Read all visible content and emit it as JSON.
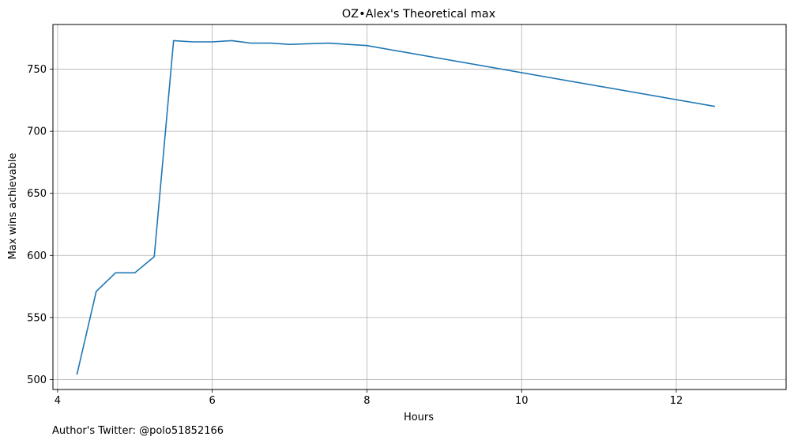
{
  "footnote": "Author's Twitter: @polo51852166",
  "chart_data": {
    "type": "line",
    "title": "OZ•Alex's Theoretical max",
    "xlabel": "Hours",
    "ylabel": "Max wins achievable",
    "xlim": [
      3.94,
      13.42
    ],
    "ylim": [
      492,
      786
    ],
    "xticks": [
      4,
      6,
      8,
      10,
      12
    ],
    "yticks": [
      500,
      550,
      600,
      650,
      700,
      750
    ],
    "grid": true,
    "series": [
      {
        "color": "#1f77b4",
        "x": [
          4.25,
          4.5,
          4.75,
          5.0,
          5.25,
          5.5,
          5.75,
          6.0,
          6.25,
          6.5,
          6.75,
          7.0,
          7.5,
          8.0,
          12.5
        ],
        "y": [
          504,
          571,
          586,
          586,
          599,
          773,
          772,
          772,
          773,
          771,
          771,
          770,
          771,
          769,
          720
        ]
      }
    ]
  }
}
